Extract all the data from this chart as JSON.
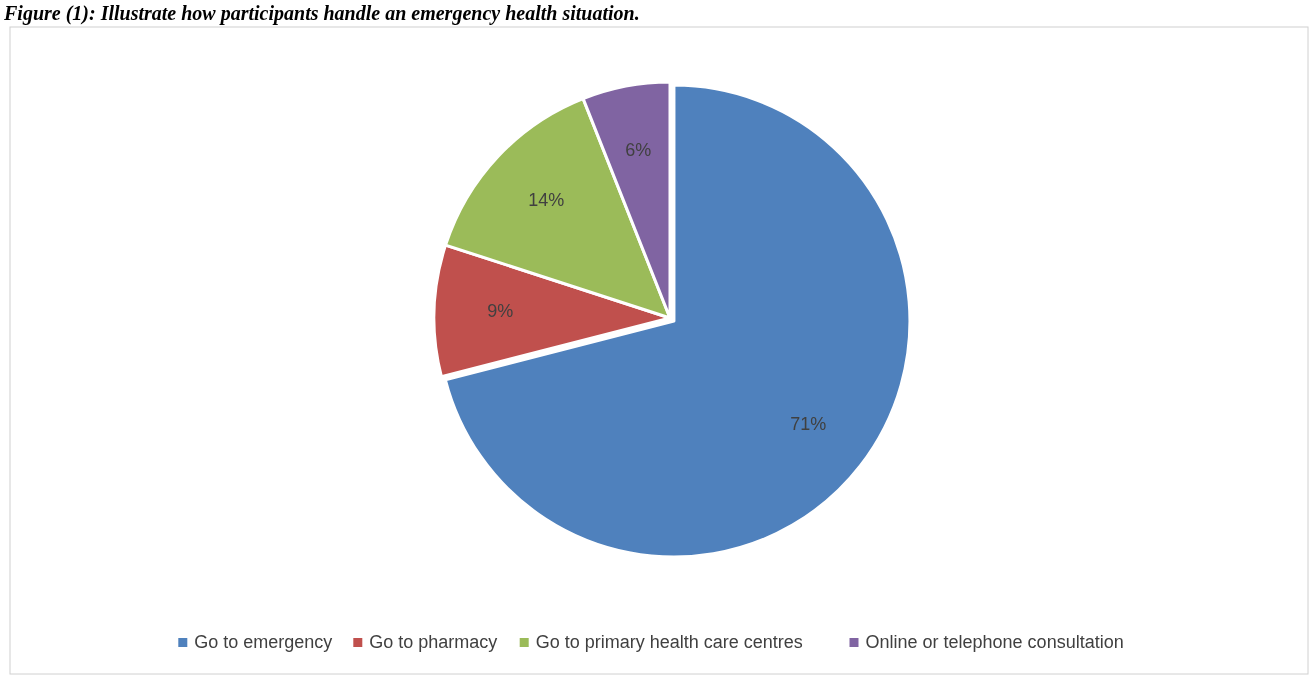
{
  "chart_data": {
    "type": "pie",
    "title": "Figure (1): Illustrate how participants handle an emergency health situation.",
    "categories": [
      "Go to emergency",
      "Go to pharmacy",
      "Go to primary health care centres",
      "Online or telephone consultation"
    ],
    "values": [
      71,
      9,
      14,
      6
    ],
    "colors": [
      "#4f81bd",
      "#c0504d",
      "#9bbb59",
      "#8064a2"
    ],
    "value_labels": [
      "71%",
      "9%",
      "14%",
      "6%"
    ],
    "legend": "bottom"
  }
}
